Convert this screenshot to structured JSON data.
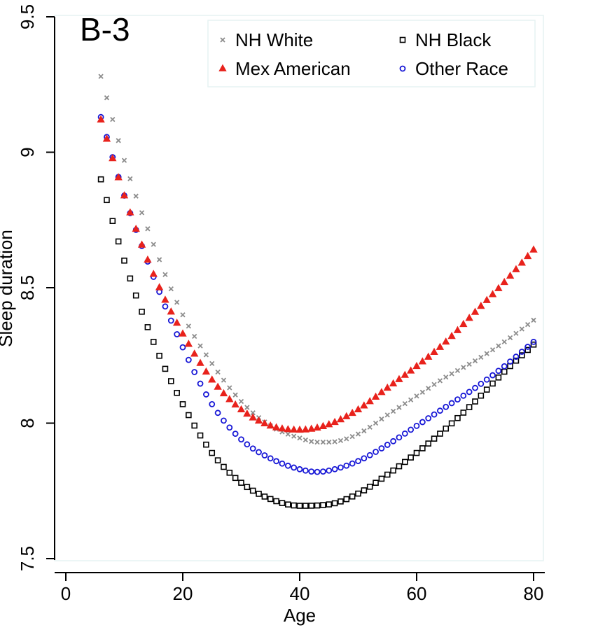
{
  "chart_data": {
    "type": "scatter",
    "panel_label": "B-3",
    "xlabel": "Age",
    "ylabel": "Sleep duration",
    "xlim": [
      0,
      80
    ],
    "ylim": [
      7.5,
      9.5
    ],
    "x_ticks": [
      0,
      20,
      40,
      60,
      80
    ],
    "x_tick_labels": [
      "0",
      "20",
      "40",
      "60",
      "80"
    ],
    "y_ticks": [
      7.5,
      8,
      8.5,
      9,
      9.5
    ],
    "y_tick_labels": [
      "7.5",
      "8",
      "8.5",
      "9",
      "9.5"
    ],
    "grid": false,
    "legend_position": "top-right",
    "x_range": [
      6,
      80
    ],
    "series": [
      {
        "name": "NH White",
        "marker": "x",
        "color": "#8c8c8c",
        "key_points": [
          {
            "x": 6,
            "y": 9.28
          },
          {
            "x": 10,
            "y": 8.97
          },
          {
            "x": 15,
            "y": 8.66
          },
          {
            "x": 20,
            "y": 8.4
          },
          {
            "x": 25,
            "y": 8.22
          },
          {
            "x": 30,
            "y": 8.08
          },
          {
            "x": 35,
            "y": 7.99
          },
          {
            "x": 40,
            "y": 7.945
          },
          {
            "x": 43,
            "y": 7.93
          },
          {
            "x": 45,
            "y": 7.93
          },
          {
            "x": 50,
            "y": 7.96
          },
          {
            "x": 55,
            "y": 8.03
          },
          {
            "x": 60,
            "y": 8.1
          },
          {
            "x": 65,
            "y": 8.17
          },
          {
            "x": 70,
            "y": 8.23
          },
          {
            "x": 75,
            "y": 8.3
          },
          {
            "x": 80,
            "y": 8.38
          }
        ]
      },
      {
        "name": "NH Black",
        "marker": "square",
        "color": "#000000",
        "key_points": [
          {
            "x": 6,
            "y": 8.9
          },
          {
            "x": 10,
            "y": 8.6
          },
          {
            "x": 15,
            "y": 8.3
          },
          {
            "x": 20,
            "y": 8.07
          },
          {
            "x": 25,
            "y": 7.89
          },
          {
            "x": 30,
            "y": 7.78
          },
          {
            "x": 35,
            "y": 7.72
          },
          {
            "x": 40,
            "y": 7.695
          },
          {
            "x": 45,
            "y": 7.7
          },
          {
            "x": 50,
            "y": 7.74
          },
          {
            "x": 55,
            "y": 7.81
          },
          {
            "x": 60,
            "y": 7.89
          },
          {
            "x": 65,
            "y": 7.98
          },
          {
            "x": 70,
            "y": 8.08
          },
          {
            "x": 75,
            "y": 8.19
          },
          {
            "x": 80,
            "y": 8.29
          }
        ]
      },
      {
        "name": "Mex American",
        "marker": "triangle",
        "color": "#e8221c",
        "key_points": [
          {
            "x": 6,
            "y": 9.12
          },
          {
            "x": 10,
            "y": 8.84
          },
          {
            "x": 15,
            "y": 8.55
          },
          {
            "x": 20,
            "y": 8.33
          },
          {
            "x": 25,
            "y": 8.16
          },
          {
            "x": 30,
            "y": 8.05
          },
          {
            "x": 35,
            "y": 7.99
          },
          {
            "x": 40,
            "y": 7.975
          },
          {
            "x": 45,
            "y": 7.995
          },
          {
            "x": 50,
            "y": 8.05
          },
          {
            "x": 55,
            "y": 8.13
          },
          {
            "x": 60,
            "y": 8.21
          },
          {
            "x": 65,
            "y": 8.3
          },
          {
            "x": 70,
            "y": 8.41
          },
          {
            "x": 75,
            "y": 8.52
          },
          {
            "x": 80,
            "y": 8.64
          }
        ]
      },
      {
        "name": "Other Race",
        "marker": "circle",
        "color": "#1717d6",
        "key_points": [
          {
            "x": 6,
            "y": 9.13
          },
          {
            "x": 10,
            "y": 8.84
          },
          {
            "x": 15,
            "y": 8.54
          },
          {
            "x": 20,
            "y": 8.28
          },
          {
            "x": 25,
            "y": 8.07
          },
          {
            "x": 30,
            "y": 7.94
          },
          {
            "x": 35,
            "y": 7.87
          },
          {
            "x": 40,
            "y": 7.83
          },
          {
            "x": 43,
            "y": 7.82
          },
          {
            "x": 45,
            "y": 7.825
          },
          {
            "x": 50,
            "y": 7.86
          },
          {
            "x": 55,
            "y": 7.92
          },
          {
            "x": 60,
            "y": 7.99
          },
          {
            "x": 65,
            "y": 8.06
          },
          {
            "x": 70,
            "y": 8.13
          },
          {
            "x": 75,
            "y": 8.21
          },
          {
            "x": 80,
            "y": 8.3
          }
        ]
      }
    ]
  }
}
